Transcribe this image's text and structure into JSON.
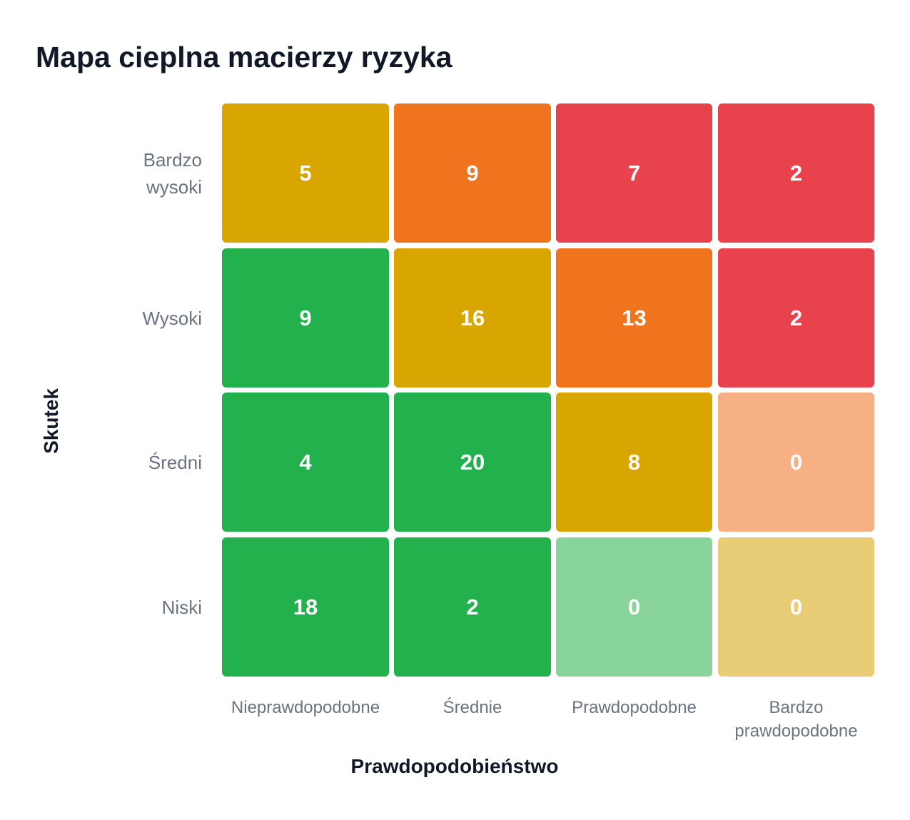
{
  "chart_data": {
    "type": "heatmap",
    "title": "Mapa cieplna macierzy ryzyka",
    "xlabel": "Prawdopodobieństwo",
    "ylabel": "Skutek",
    "x_categories": [
      "Nieprawdopodobne",
      "Średnie",
      "Prawdopodobne",
      "Bardzo prawdopodobne"
    ],
    "x_label_lines": [
      [
        "Nieprawdopodobne"
      ],
      [
        "Średnie"
      ],
      [
        "Prawdopodobne"
      ],
      [
        "Bardzo",
        "prawdopodobne"
      ]
    ],
    "y_categories": [
      "Bardzo wysoki",
      "Wysoki",
      "Średni",
      "Niski"
    ],
    "y_label_lines": [
      [
        "Bardzo",
        "wysoki"
      ],
      [
        "Wysoki"
      ],
      [
        "Średni"
      ],
      [
        "Niski"
      ]
    ],
    "values": [
      [
        5,
        9,
        7,
        2
      ],
      [
        9,
        16,
        13,
        2
      ],
      [
        4,
        20,
        8,
        0
      ],
      [
        18,
        2,
        0,
        0
      ]
    ],
    "cell_colors": [
      [
        "#d9a500",
        "#f0731e",
        "#e8424c",
        "#e8424c"
      ],
      [
        "#22b14c",
        "#d9a500",
        "#f0731e",
        "#e8424c"
      ],
      [
        "#22b14c",
        "#22b14c",
        "#d9a500",
        "#f6b084"
      ],
      [
        "#22b14c",
        "#22b14c",
        "#88d49a",
        "#e9cd76"
      ]
    ]
  }
}
